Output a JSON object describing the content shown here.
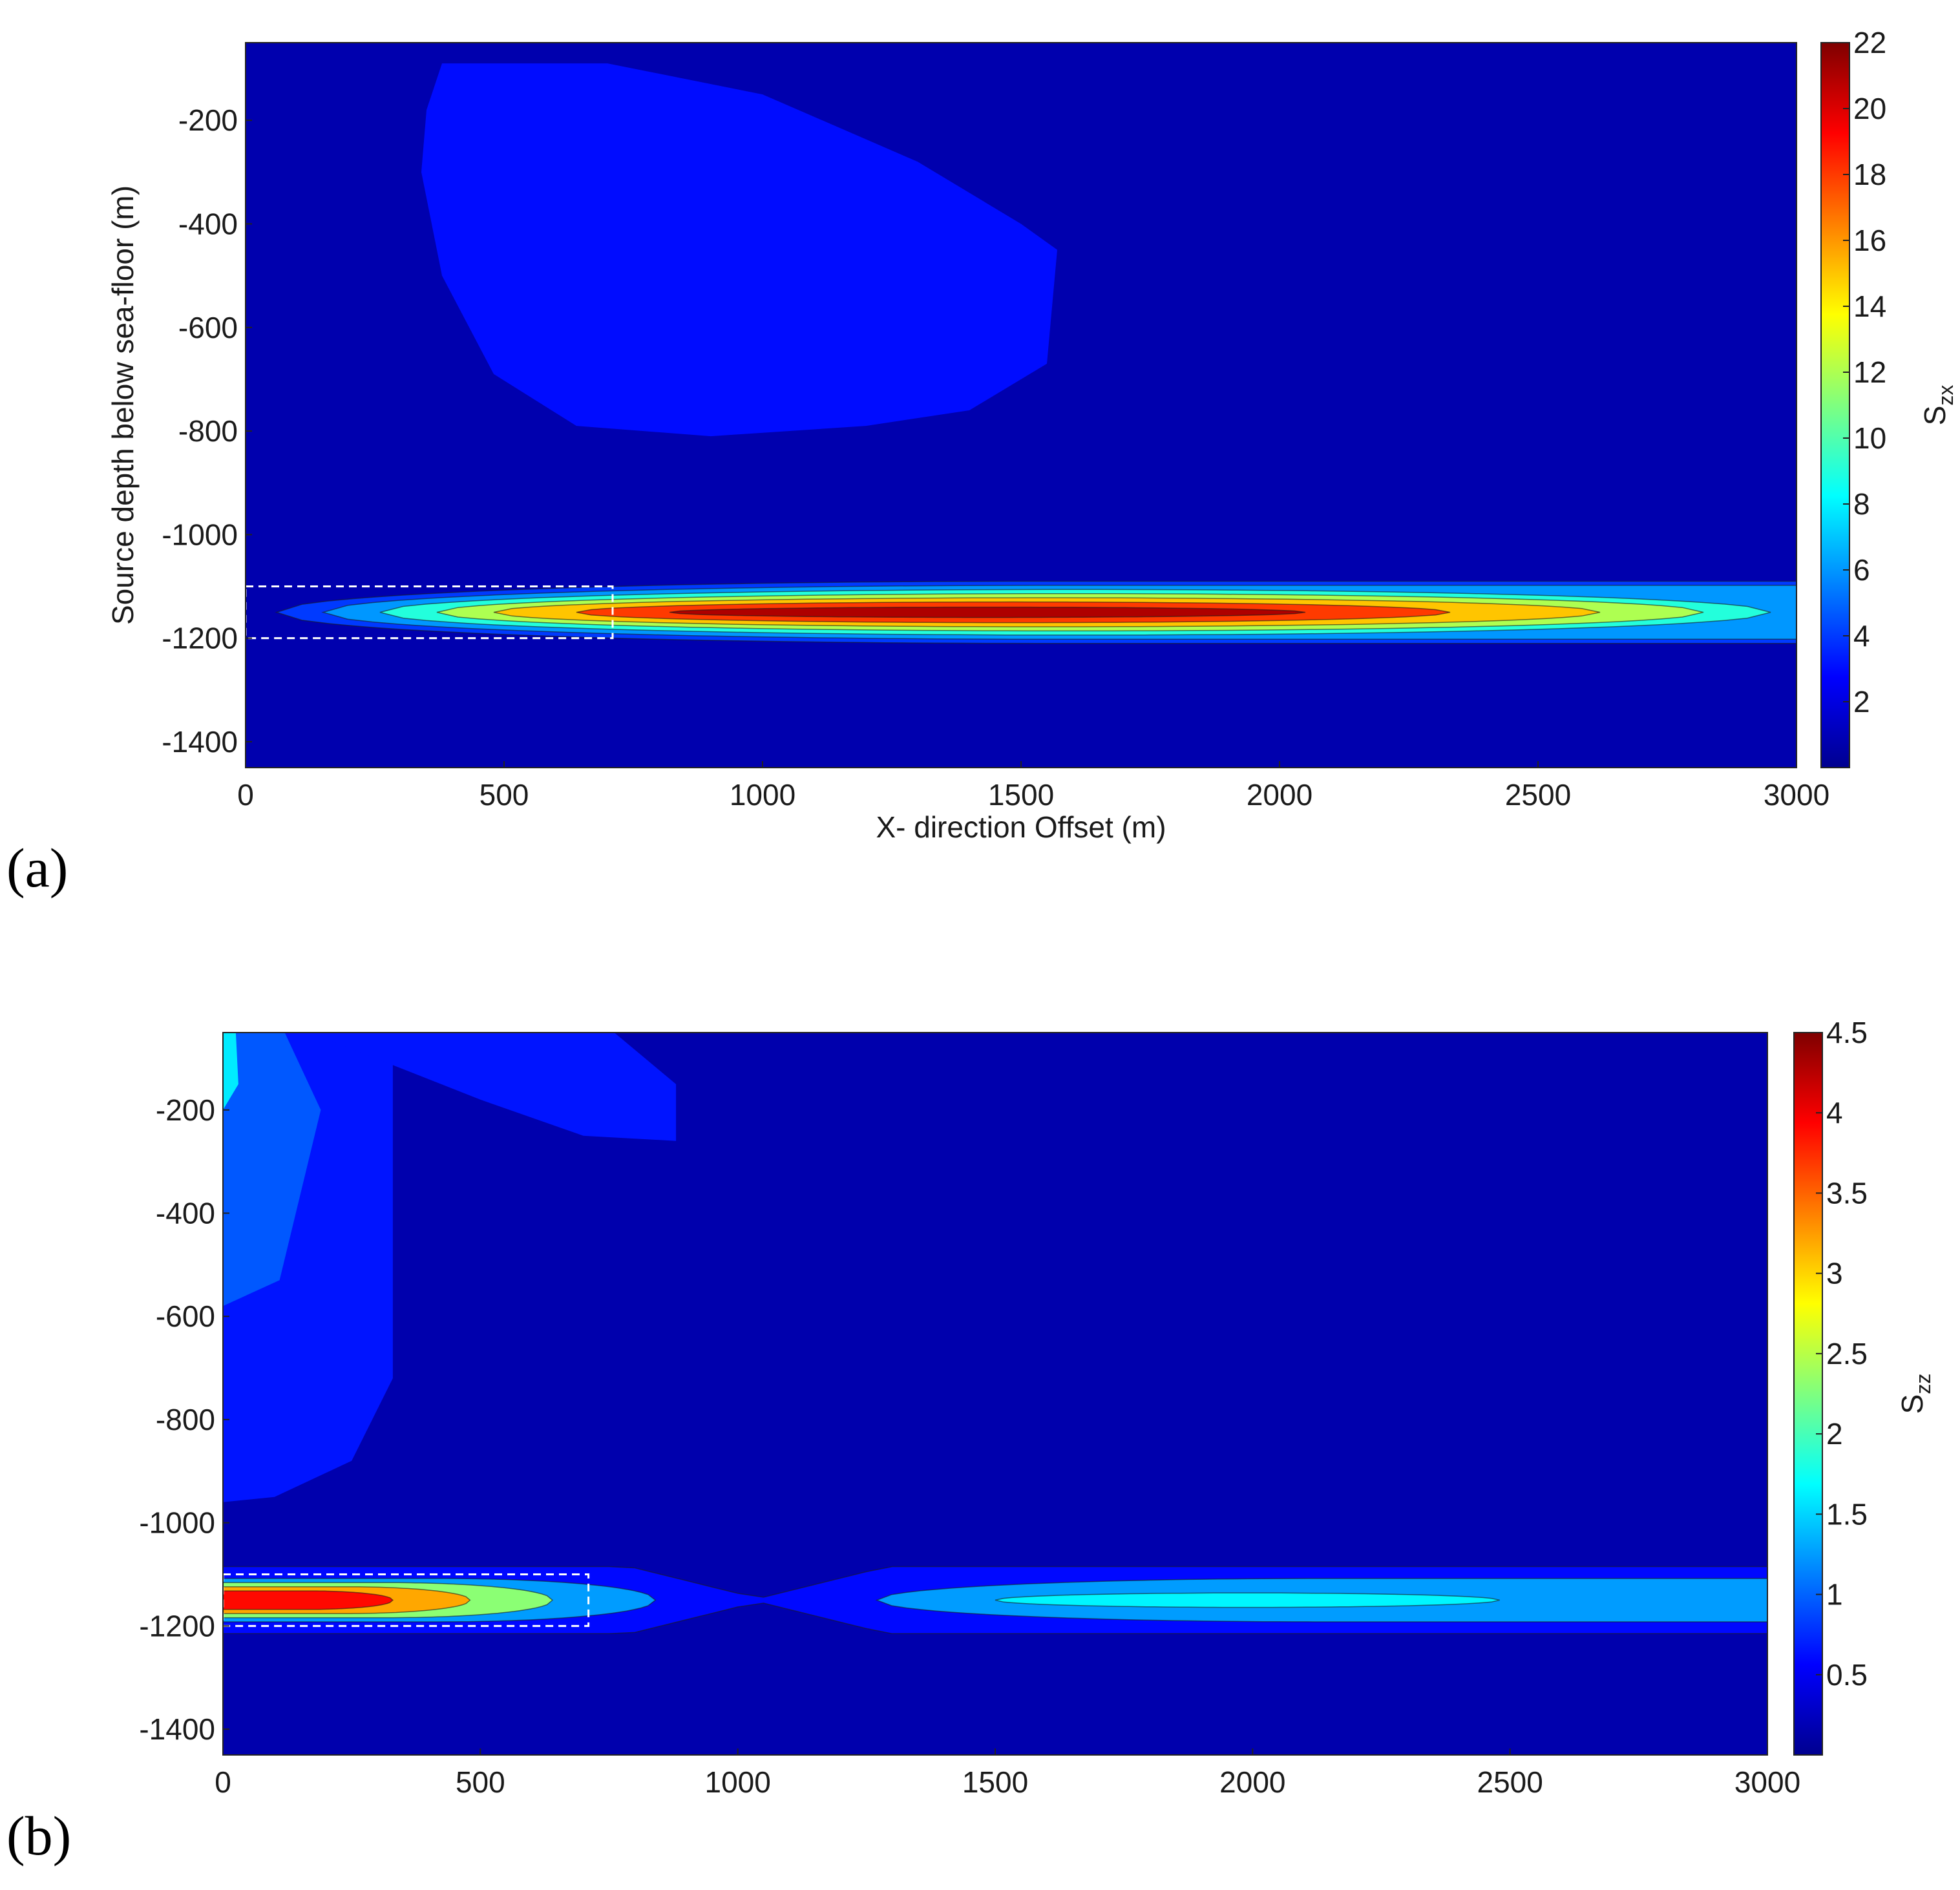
{
  "panels": [
    {
      "label": "(a)",
      "chart_data": {
        "type": "heatmap",
        "xlabel": "X- direction Offset (m)",
        "ylabel": "Source depth below sea-floor (m)",
        "xlim": [
          0,
          3000
        ],
        "ylim": [
          -1450,
          -50
        ],
        "xticks": [
          0,
          500,
          1000,
          1500,
          2000,
          2500,
          3000
        ],
        "yticks": [
          -1400,
          -1200,
          -1000,
          -800,
          -600,
          -400,
          -200
        ],
        "colorbar": {
          "label": "S",
          "label_sub": "zx",
          "range": [
            0,
            22
          ],
          "ticks": [
            2,
            4,
            6,
            8,
            10,
            12,
            14,
            16,
            18,
            20,
            22
          ]
        },
        "background_value": 1,
        "features": [
          {
            "kind": "lobe",
            "value": 3,
            "outline": [
              [
                380,
                -90
              ],
              [
                700,
                -90
              ],
              [
                1000,
                -150
              ],
              [
                1300,
                -280
              ],
              [
                1500,
                -400
              ],
              [
                1570,
                -450
              ],
              [
                1550,
                -670
              ],
              [
                1400,
                -760
              ],
              [
                1200,
                -790
              ],
              [
                900,
                -810
              ],
              [
                640,
                -790
              ],
              [
                480,
                -690
              ],
              [
                380,
                -500
              ],
              [
                340,
                -300
              ],
              [
                350,
                -180
              ]
            ]
          },
          {
            "kind": "band",
            "center_y": -1150,
            "levels": [
              {
                "value": 4,
                "x": [
                  60,
                  3000
                ],
                "half_h": 60,
                "fade": "right-open"
              },
              {
                "value": 6,
                "x": [
                  150,
                  3000
                ],
                "half_h": 52
              },
              {
                "value": 9,
                "x": [
                  260,
                  2950
                ],
                "half_h": 44
              },
              {
                "value": 12,
                "x": [
                  370,
                  2820
                ],
                "half_h": 36
              },
              {
                "value": 15,
                "x": [
                  480,
                  2620
                ],
                "half_h": 28
              },
              {
                "value": 18,
                "x": [
                  640,
                  2330
                ],
                "half_h": 20
              },
              {
                "value": 21,
                "x": [
                  820,
                  2050
                ],
                "half_h": 10
              }
            ]
          }
        ],
        "annotations": [
          {
            "type": "dashed-box",
            "x": [
              0,
              710
            ],
            "y": [
              -1200,
              -1100
            ]
          }
        ]
      }
    },
    {
      "label": "(b)",
      "chart_data": {
        "type": "heatmap",
        "xlabel": "",
        "ylabel": "",
        "xlim": [
          0,
          3000
        ],
        "ylim": [
          -1450,
          -50
        ],
        "xticks": [
          0,
          500,
          1000,
          1500,
          2000,
          2500,
          3000
        ],
        "yticks": [
          -1400,
          -1200,
          -1000,
          -800,
          -600,
          -400,
          -200
        ],
        "colorbar": {
          "label": "S",
          "label_sub": "zz",
          "range": [
            0,
            4.5
          ],
          "ticks": [
            0.5,
            1,
            1.5,
            2,
            2.5,
            3,
            3.5,
            4,
            4.5
          ]
        },
        "background_value": 0.2,
        "features": [
          {
            "kind": "lobe",
            "value": 0.65,
            "outline": [
              [
                0,
                -50
              ],
              [
                330,
                -50
              ],
              [
                330,
                -720
              ],
              [
                250,
                -880
              ],
              [
                100,
                -950
              ],
              [
                0,
                -960
              ]
            ]
          },
          {
            "kind": "lobe",
            "value": 0.95,
            "outline": [
              [
                0,
                -50
              ],
              [
                120,
                -50
              ],
              [
                190,
                -200
              ],
              [
                110,
                -530
              ],
              [
                0,
                -580
              ]
            ]
          },
          {
            "kind": "lobe",
            "value": 1.6,
            "outline": [
              [
                0,
                -50
              ],
              [
                25,
                -50
              ],
              [
                30,
                -150
              ],
              [
                0,
                -200
              ]
            ]
          },
          {
            "kind": "lobe",
            "value": 0.65,
            "outline": [
              [
                170,
                -50
              ],
              [
                760,
                -50
              ],
              [
                880,
                -150
              ],
              [
                880,
                -260
              ],
              [
                700,
                -250
              ],
              [
                500,
                -180
              ]
            ]
          },
          {
            "kind": "band",
            "center_y": -1150,
            "levels": [
              {
                "value": 0.6,
                "x": [
                  0,
                  3000
                ],
                "half_h": 65,
                "pinch_x": 1040
              },
              {
                "value": 1.25,
                "x": [
                  0,
                  840
                ],
                "half_h": 42
              },
              {
                "value": 1.25,
                "x": [
                  1270,
                  3000
                ],
                "half_h": 42
              },
              {
                "value": 1.65,
                "x": [
                  1500,
                  2480
                ],
                "half_h": 14
              },
              {
                "value": 2.3,
                "x": [
                  0,
                  640
                ],
                "half_h": 34
              },
              {
                "value": 3.2,
                "x": [
                  0,
                  480
                ],
                "half_h": 26
              },
              {
                "value": 3.9,
                "x": [
                  0,
                  330
                ],
                "half_h": 18
              }
            ]
          }
        ],
        "annotations": [
          {
            "type": "dashed-box",
            "x": [
              0,
              710
            ],
            "y": [
              -1200,
              -1100
            ]
          }
        ]
      }
    }
  ]
}
